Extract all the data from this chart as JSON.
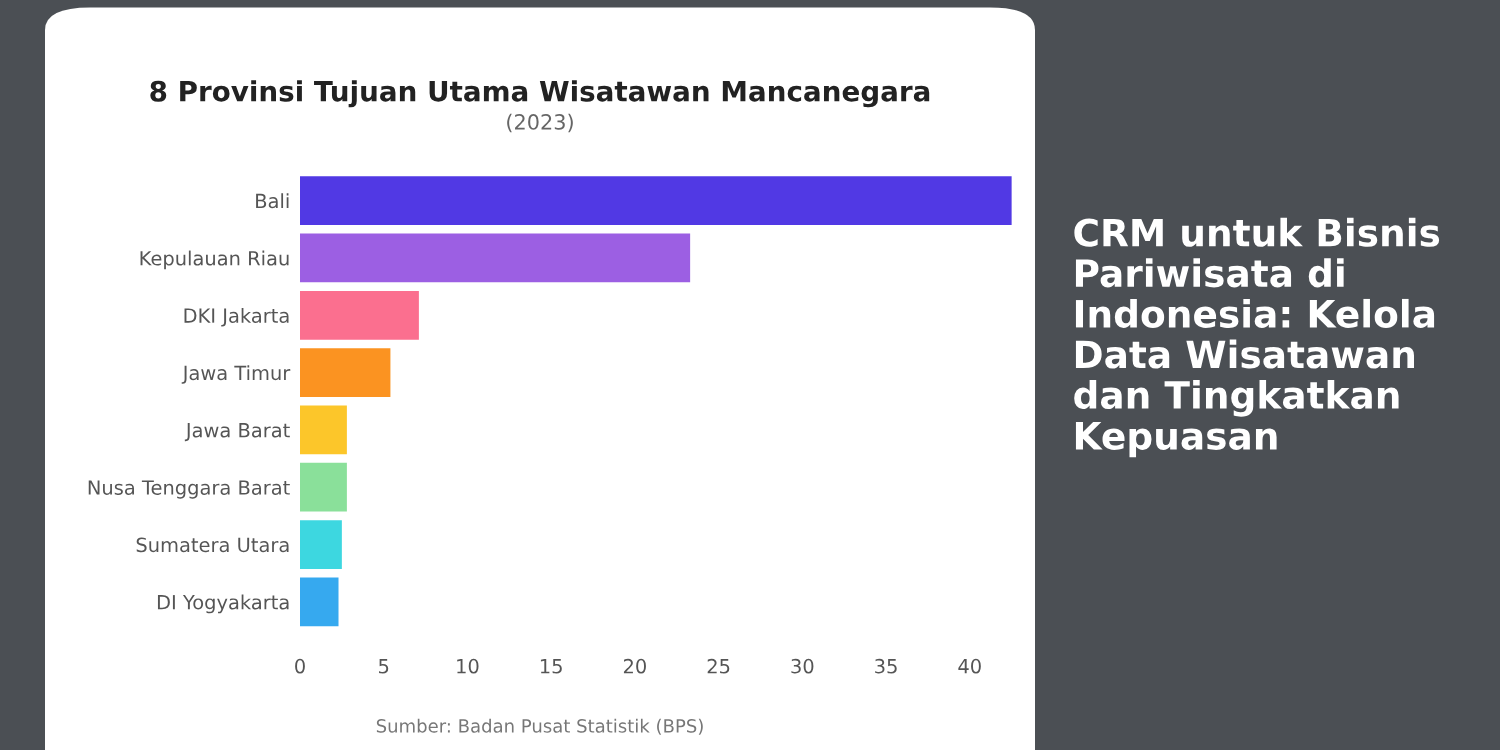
{
  "chart_data": {
    "type": "bar",
    "orientation": "horizontal",
    "title": "8 Provinsi Tujuan Utama Wisatawan Mancanegara",
    "subtitle": "(2023)",
    "categories": [
      "Bali",
      "Kepulauan Riau",
      "DKI Jakarta",
      "Jawa Timur",
      "Jawa Barat",
      "Nusa Tenggara Barat",
      "Sumatera Utara",
      "DI Yogyakarta"
    ],
    "values": [
      42.5,
      23.3,
      7.1,
      5.4,
      2.8,
      2.8,
      2.5,
      2.3
    ],
    "colors": [
      "#5139e4",
      "#9c5fe3",
      "#fb6f8f",
      "#fb9321",
      "#fcc62a",
      "#8ae09a",
      "#3dd7e0",
      "#36a9ef"
    ],
    "xlim": [
      0,
      43
    ],
    "xticks": [
      0,
      5,
      10,
      15,
      20,
      25,
      30,
      35,
      40
    ],
    "annotations": [
      "Sumber: Badan Pusat Statistik (BPS)",
      "CRM untuk Bisnis Pariwisata di Indonesia: Kelola Data Wisatawan dan Tingkatkan Kepuasan"
    ]
  }
}
